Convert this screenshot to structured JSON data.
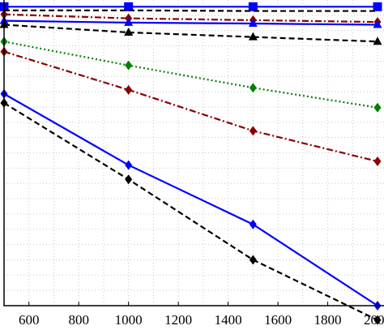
{
  "chart_data": {
    "type": "line",
    "x": [
      500,
      1000,
      1500,
      2000
    ],
    "xlim": [
      500,
      2000
    ],
    "ylim": [
      0,
      100
    ],
    "grid": true,
    "x_tick_labels": [
      "600",
      "800",
      "1000",
      "1200",
      "1400",
      "1600",
      "1800",
      "2000"
    ],
    "series": [
      {
        "values": [
          97.8,
          97.8,
          97.8,
          97.8
        ],
        "color": "#0000ff",
        "line_style": "solid",
        "marker": "square"
      },
      {
        "values": [
          96.6,
          96.6,
          96.4,
          96.4
        ],
        "color": "#000000",
        "line_style": "dashed",
        "marker": "none"
      },
      {
        "values": [
          95.3,
          94.0,
          93.4,
          92.8
        ],
        "color": "#8b0000",
        "line_style": "dashdot",
        "marker": "diamond"
      },
      {
        "values": [
          93.2,
          92.6,
          92.3,
          91.9
        ],
        "color": "#0000ff",
        "line_style": "solid",
        "marker": "triangle-up"
      },
      {
        "values": [
          91.9,
          89.4,
          87.9,
          86.4
        ],
        "color": "#000000",
        "line_style": "dashed",
        "marker": "triangle-up"
      },
      {
        "values": [
          86.4,
          78.6,
          71.3,
          64.8
        ],
        "color": "#008000",
        "line_style": "dotted",
        "marker": "diamond"
      },
      {
        "values": [
          83.1,
          70.6,
          57.2,
          47.2
        ],
        "color": "#8b0000",
        "line_style": "dashdot",
        "marker": "diamond"
      },
      {
        "values": [
          69.3,
          46.0,
          26.6,
          0.0
        ],
        "color": "#0000ff",
        "line_style": "solid",
        "marker": "diamond"
      },
      {
        "values": [
          66.3,
          41.3,
          15.0,
          -4.7
        ],
        "color": "#000000",
        "line_style": "dashed",
        "marker": "diamond"
      }
    ]
  }
}
